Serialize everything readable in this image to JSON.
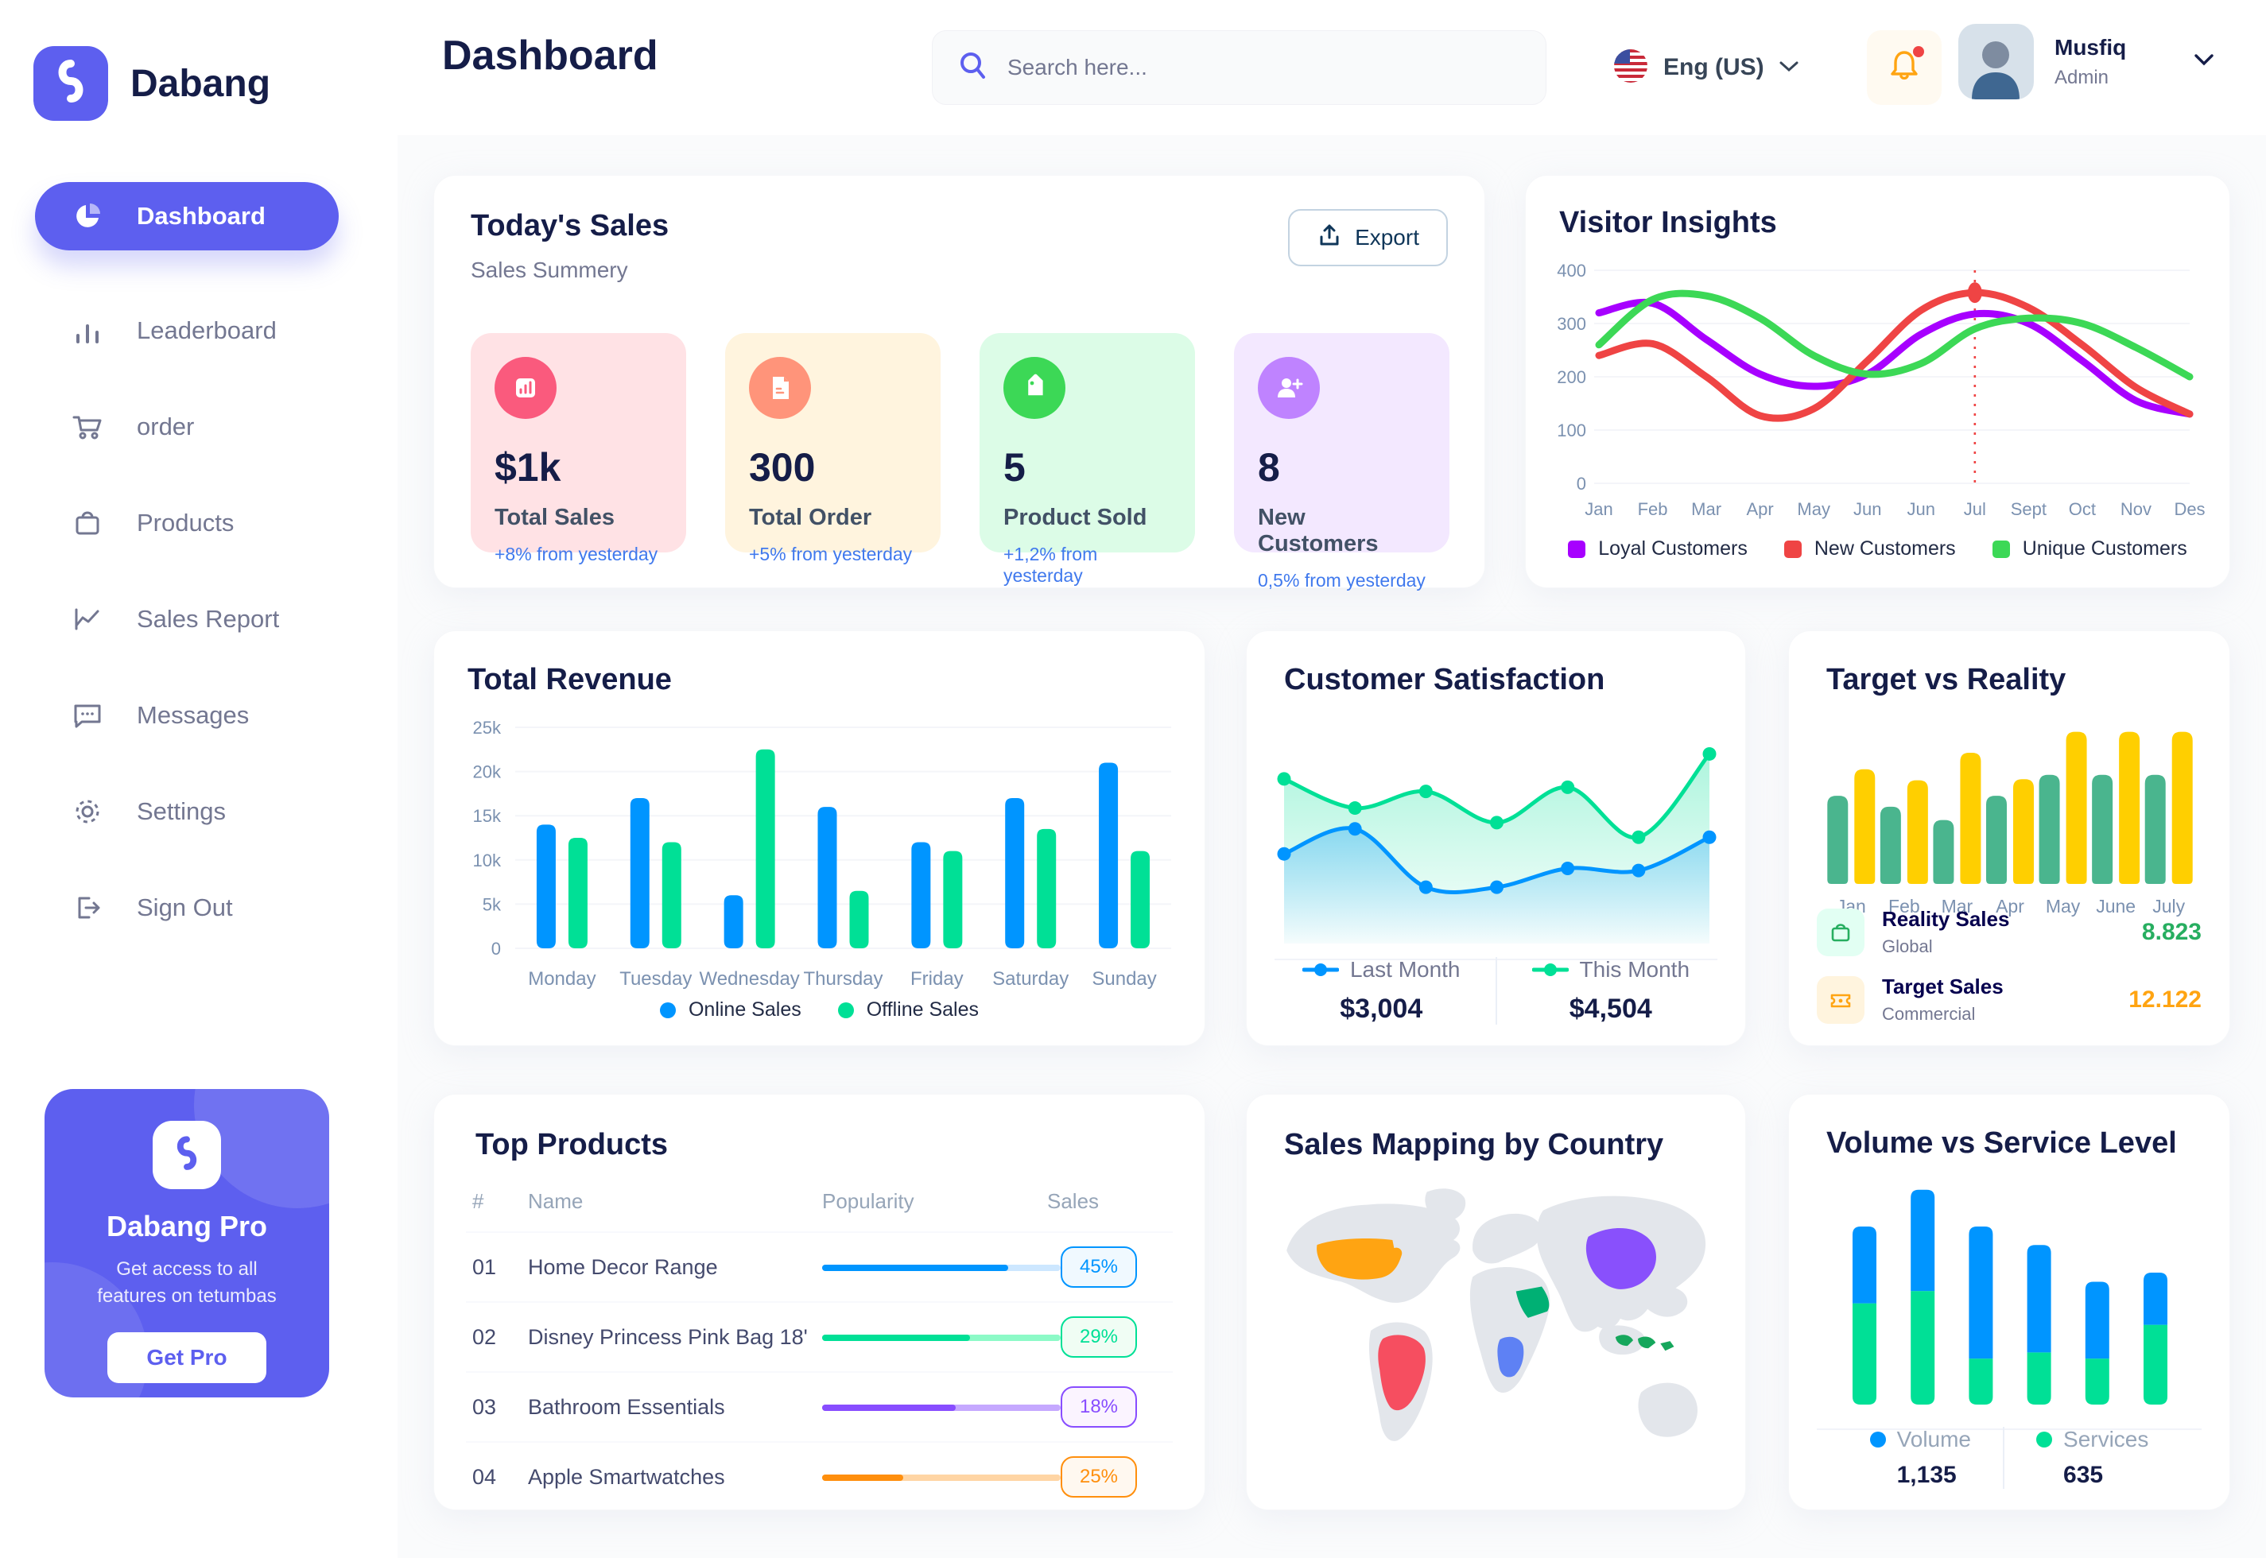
{
  "app": {
    "brand": "Dabang",
    "page_title": "Dashboard"
  },
  "header": {
    "search_placeholder": "Search here...",
    "language": "Eng (US)",
    "user": {
      "name": "Musfiq",
      "role": "Admin"
    }
  },
  "sidebar": {
    "items": [
      {
        "label": "Dashboard",
        "icon": "pie-chart",
        "active": true
      },
      {
        "label": "Leaderboard",
        "icon": "bar-chart",
        "active": false
      },
      {
        "label": "order",
        "icon": "cart",
        "active": false
      },
      {
        "label": "Products",
        "icon": "bag",
        "active": false
      },
      {
        "label": "Sales Report",
        "icon": "line-chart",
        "active": false
      },
      {
        "label": "Messages",
        "icon": "chat",
        "active": false
      },
      {
        "label": "Settings",
        "icon": "gear",
        "active": false
      },
      {
        "label": "Sign Out",
        "icon": "sign-out",
        "active": false
      }
    ],
    "promo": {
      "title": "Dabang Pro",
      "subtitle": "Get access to all features on tetumbas",
      "button": "Get Pro"
    }
  },
  "today_sales": {
    "title": "Today's Sales",
    "subtitle": "Sales Summery",
    "export_label": "Export",
    "cards": [
      {
        "value": "$1k",
        "label": "Total Sales",
        "delta": "+8% from yesterday",
        "bg": "#FFE2E5",
        "icon_bg": "#FA5A7D",
        "icon": "chart"
      },
      {
        "value": "300",
        "label": "Total Order",
        "delta": "+5% from yesterday",
        "bg": "#FFF4DE",
        "icon_bg": "#FF947A",
        "icon": "file"
      },
      {
        "value": "5",
        "label": "Product Sold",
        "delta": "+1,2% from yesterday",
        "bg": "#DCFCE7",
        "icon_bg": "#3CD856",
        "icon": "tag"
      },
      {
        "value": "8",
        "label": "New Customers",
        "delta": "0,5% from yesterday",
        "bg": "#F3E8FF",
        "icon_bg": "#BF83FF",
        "icon": "user-plus"
      }
    ]
  },
  "chart_data": [
    {
      "id": "visitor_insights",
      "type": "line",
      "title": "Visitor Insights",
      "x": [
        "Jan",
        "Feb",
        "Mar",
        "Apr",
        "May",
        "Jun",
        "Jun",
        "Jul",
        "Sept",
        "Oct",
        "Nov",
        "Des"
      ],
      "ylim": [
        0,
        400
      ],
      "yticks": [
        0,
        100,
        200,
        300,
        400
      ],
      "grid": true,
      "legend_position": "bottom",
      "series": [
        {
          "name": "Loyal Customers",
          "color": "#A700FF",
          "values": [
            320,
            338,
            270,
            205,
            182,
            205,
            280,
            318,
            300,
            230,
            155,
            130
          ]
        },
        {
          "name": "New Customers",
          "color": "#EF4444",
          "values": [
            240,
            262,
            200,
            127,
            140,
            230,
            325,
            358,
            330,
            260,
            180,
            130
          ]
        },
        {
          "name": "Unique Customers",
          "color": "#3CD856",
          "values": [
            260,
            345,
            352,
            310,
            240,
            205,
            225,
            290,
            310,
            300,
            255,
            200
          ]
        }
      ],
      "highlight": {
        "x_index": 7,
        "x_label": "Jul",
        "series": "New Customers",
        "value": 358
      }
    },
    {
      "id": "total_revenue",
      "type": "bar",
      "title": "Total Revenue",
      "categories": [
        "Monday",
        "Tuesday",
        "Wednesday",
        "Thursday",
        "Friday",
        "Saturday",
        "Sunday"
      ],
      "ylim": [
        0,
        25000
      ],
      "yticks": [
        [
          0,
          "0"
        ],
        [
          5000,
          "5k"
        ],
        [
          10000,
          "10k"
        ],
        [
          15000,
          "15k"
        ],
        [
          20000,
          "20k"
        ],
        [
          25000,
          "25k"
        ]
      ],
      "grid": true,
      "legend_position": "bottom",
      "series": [
        {
          "name": "Online Sales",
          "color": "#0095FF",
          "values": [
            14000,
            17000,
            6000,
            16000,
            12000,
            17000,
            21000
          ]
        },
        {
          "name": "Offline Sales",
          "color": "#00E096",
          "values": [
            12500,
            12000,
            22500,
            6500,
            11000,
            13500,
            11000
          ]
        }
      ]
    },
    {
      "id": "customer_satisfaction",
      "type": "area",
      "title": "Customer Satisfaction",
      "x": [
        1,
        2,
        3,
        4,
        5,
        6,
        7
      ],
      "ylim": [
        0,
        100
      ],
      "grid": false,
      "legend_position": "bottom",
      "series": [
        {
          "name": "This Month",
          "color": "#00E096",
          "total": "$4,504",
          "values": [
            76,
            62,
            70,
            55,
            72,
            48,
            88
          ]
        },
        {
          "name": "Last Month",
          "color": "#0095FF",
          "total": "$3,004",
          "values": [
            40,
            52,
            24,
            24,
            33,
            32,
            48
          ]
        }
      ],
      "legend_order": [
        "Last Month",
        "This Month"
      ]
    },
    {
      "id": "target_vs_reality",
      "type": "bar",
      "title": "Target vs Reality",
      "categories": [
        "Jan",
        "Feb",
        "Mar",
        "Apr",
        "May",
        "June",
        "July"
      ],
      "ylim": [
        0,
        15
      ],
      "grid": false,
      "series": [
        {
          "name": "Reality Sales",
          "color": "#4AB58E",
          "values": [
            8.0,
            7.0,
            5.8,
            8.0,
            9.9,
            9.9,
            9.9
          ]
        },
        {
          "name": "Target Sales",
          "color": "#FFCF00",
          "values": [
            10.4,
            9.4,
            11.9,
            9.5,
            13.8,
            13.8,
            13.8
          ]
        }
      ],
      "legend": [
        {
          "label": "Reality Sales",
          "sub": "Global",
          "value": "8.823",
          "value_color": "#27AE60",
          "icon": "bag",
          "icon_color": "#27AE60",
          "icon_bg": "#E2FFF3"
        },
        {
          "label": "Target Sales",
          "sub": "Commercial",
          "value": "12.122",
          "value_color": "#FFA412",
          "icon": "ticket",
          "icon_color": "#FFA412",
          "icon_bg": "#FFF4DE"
        }
      ]
    },
    {
      "id": "volume_vs_service",
      "type": "bar",
      "stacked": true,
      "title": "Volume vs Service Level",
      "categories": [
        "1",
        "2",
        "3",
        "4",
        "5",
        "6"
      ],
      "ylim": [
        0,
        72
      ],
      "grid": false,
      "legend_position": "bottom",
      "series": [
        {
          "name": "Volume",
          "color": "#0095FF",
          "total": "1,135",
          "values": [
            25,
            33,
            43,
            35,
            25,
            17
          ]
        },
        {
          "name": "Services",
          "color": "#00E096",
          "total": "635",
          "values": [
            33,
            37,
            15,
            17,
            15,
            26
          ]
        }
      ]
    }
  ],
  "top_products": {
    "title": "Top Products",
    "headers": {
      "num": "#",
      "name": "Name",
      "popularity": "Popularity",
      "sales": "Sales"
    },
    "rows": [
      {
        "num": "01",
        "name": "Home Decor Range",
        "popularity_pct": 78,
        "sales": "45%",
        "color": "#0095FF",
        "track": "#CDE7FF",
        "badge_bg": "#F0F9FF"
      },
      {
        "num": "02",
        "name": "Disney Princess Pink Bag 18'",
        "popularity_pct": 62,
        "sales": "29%",
        "color": "#00E096",
        "track": "#8CFAC7",
        "badge_bg": "#F0FDF4"
      },
      {
        "num": "03",
        "name": "Bathroom Essentials",
        "popularity_pct": 56,
        "sales": "18%",
        "color": "#884DFF",
        "track": "#C5A8FF",
        "badge_bg": "#FBF4FF"
      },
      {
        "num": "04",
        "name": "Apple Smartwatches",
        "popularity_pct": 34,
        "sales": "25%",
        "color": "#FF8F0D",
        "track": "#FFD5A4",
        "badge_bg": "#FFF8F0"
      }
    ]
  },
  "sales_map": {
    "title": "Sales Mapping by Country",
    "land_color": "#E3E6EB",
    "countries": [
      {
        "name": "United States",
        "color": "#FFA412"
      },
      {
        "name": "Brazil",
        "color": "#F64E60"
      },
      {
        "name": "Saudi Arabia",
        "color": "#00B074"
      },
      {
        "name": "DR Congo",
        "color": "#5E81F4"
      },
      {
        "name": "China",
        "color": "#8950FC"
      },
      {
        "name": "Indonesia",
        "color": "#16A75C"
      }
    ]
  },
  "theme": {
    "primary": "#5D5FEF",
    "heading": "#151D48",
    "muted": "#737791",
    "delta_blue": "#4079ED",
    "bell": "#FFA412"
  }
}
